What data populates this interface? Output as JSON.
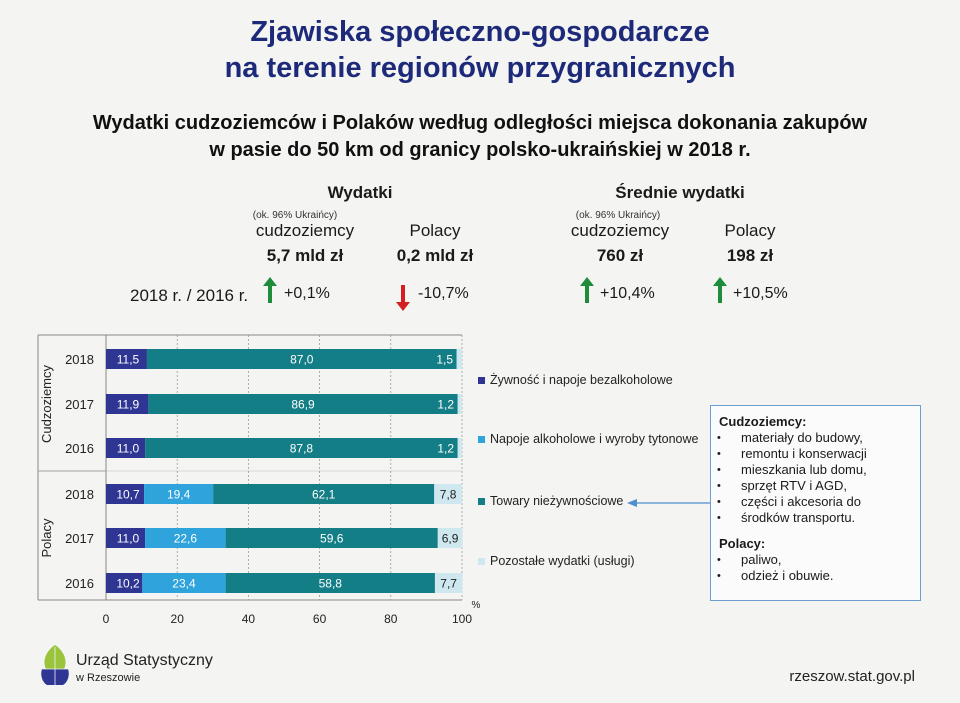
{
  "header": {
    "title_line1": "Zjawiska społeczno-gospodarcze",
    "title_line2": "na terenie regionów przygranicznych",
    "subtitle_line1": "Wydatki cudzoziemców i Polaków według odległości miejsca dokonania zakupów",
    "subtitle_line2": "w pasie do 50 km od granicy polsko-ukraińskiej w 2018 r."
  },
  "summary": {
    "comparison_label": "2018 r. / 2016 r.",
    "spending": {
      "heading": "Wydatki",
      "foreigners_note": "(ok. 96% Ukraińcy)",
      "foreigners_label": "cudzoziemcy",
      "foreigners_value": "5,7 mld zł",
      "foreigners_change": "+0,1%",
      "poles_label": "Polacy",
      "poles_value": "0,2 mld zł",
      "poles_change": "-10,7%"
    },
    "avg_spending": {
      "heading": "Średnie wydatki",
      "foreigners_note": "(ok. 96% Ukraińcy)",
      "foreigners_label": "cudzoziemcy",
      "foreigners_value": "760 zł",
      "foreigners_change": "+10,4%",
      "poles_label": "Polacy",
      "poles_value": "198 zł",
      "poles_change": "+10,5%"
    },
    "colors": {
      "up": "#1e8c3a",
      "down": "#d42020"
    }
  },
  "chart_data": {
    "type": "bar",
    "orientation": "horizontal",
    "stacked": true,
    "groups": [
      {
        "name": "Cudzoziemcy",
        "categories": [
          "2018",
          "2017",
          "2016"
        ]
      },
      {
        "name": "Polacy",
        "categories": [
          "2018",
          "2017",
          "2016"
        ]
      }
    ],
    "categories": [
      "2018",
      "2017",
      "2016",
      "2018",
      "2017",
      "2016"
    ],
    "series": [
      {
        "name": "Żywność i napoje bezalkoholowe",
        "color": "#2e3592",
        "values": [
          11.5,
          11.9,
          11.0,
          10.7,
          11.0,
          10.2
        ],
        "labels": [
          "11,5",
          "11,9",
          "11,0",
          "10,7",
          "11,0",
          "10,2"
        ]
      },
      {
        "name": "Napoje alkoholowe i wyroby tytonowe",
        "color": "#2ea3dc",
        "values": [
          0.0,
          0.0,
          0.0,
          19.4,
          22.6,
          23.4
        ],
        "labels": [
          "",
          "",
          "",
          "19,4",
          "22,6",
          "23,4"
        ]
      },
      {
        "name": "Towary nieżywnościowe",
        "color": "#147e86",
        "values": [
          87.0,
          86.9,
          87.8,
          62.1,
          59.6,
          58.8
        ],
        "labels": [
          "87,0",
          "86,9",
          "87,8",
          "62,1",
          "59,6",
          "58,8"
        ]
      },
      {
        "name": "Pozostałe wydatki (usługi)",
        "color": "#cfe8ef",
        "values": [
          1.5,
          1.2,
          1.2,
          7.8,
          6.9,
          7.7
        ],
        "labels": [
          "1,5",
          "1,2",
          "1,2",
          "7,8",
          "6,9",
          "7,7"
        ]
      }
    ],
    "xaxis": {
      "ticks": [
        "0",
        "20",
        "40",
        "60",
        "80",
        "100"
      ],
      "unit": "%"
    },
    "xlim": [
      0,
      100
    ],
    "legend_position": "right"
  },
  "info_box": {
    "foreigners_heading": "Cudzoziemcy:",
    "foreigners_items": [
      "materiały do budowy,",
      "remontu i konserwacji",
      "mieszkania lub domu,",
      "sprzęt RTV i AGD,",
      "części i akcesoria do",
      "środków transportu."
    ],
    "poles_heading": "Polacy:",
    "poles_items": [
      "paliwo,",
      "odzież i obuwie."
    ]
  },
  "footer": {
    "logo_line1": "Urząd Statystyczny",
    "logo_line2": "w Rzeszowie",
    "url": "rzeszow.stat.gov.pl"
  }
}
